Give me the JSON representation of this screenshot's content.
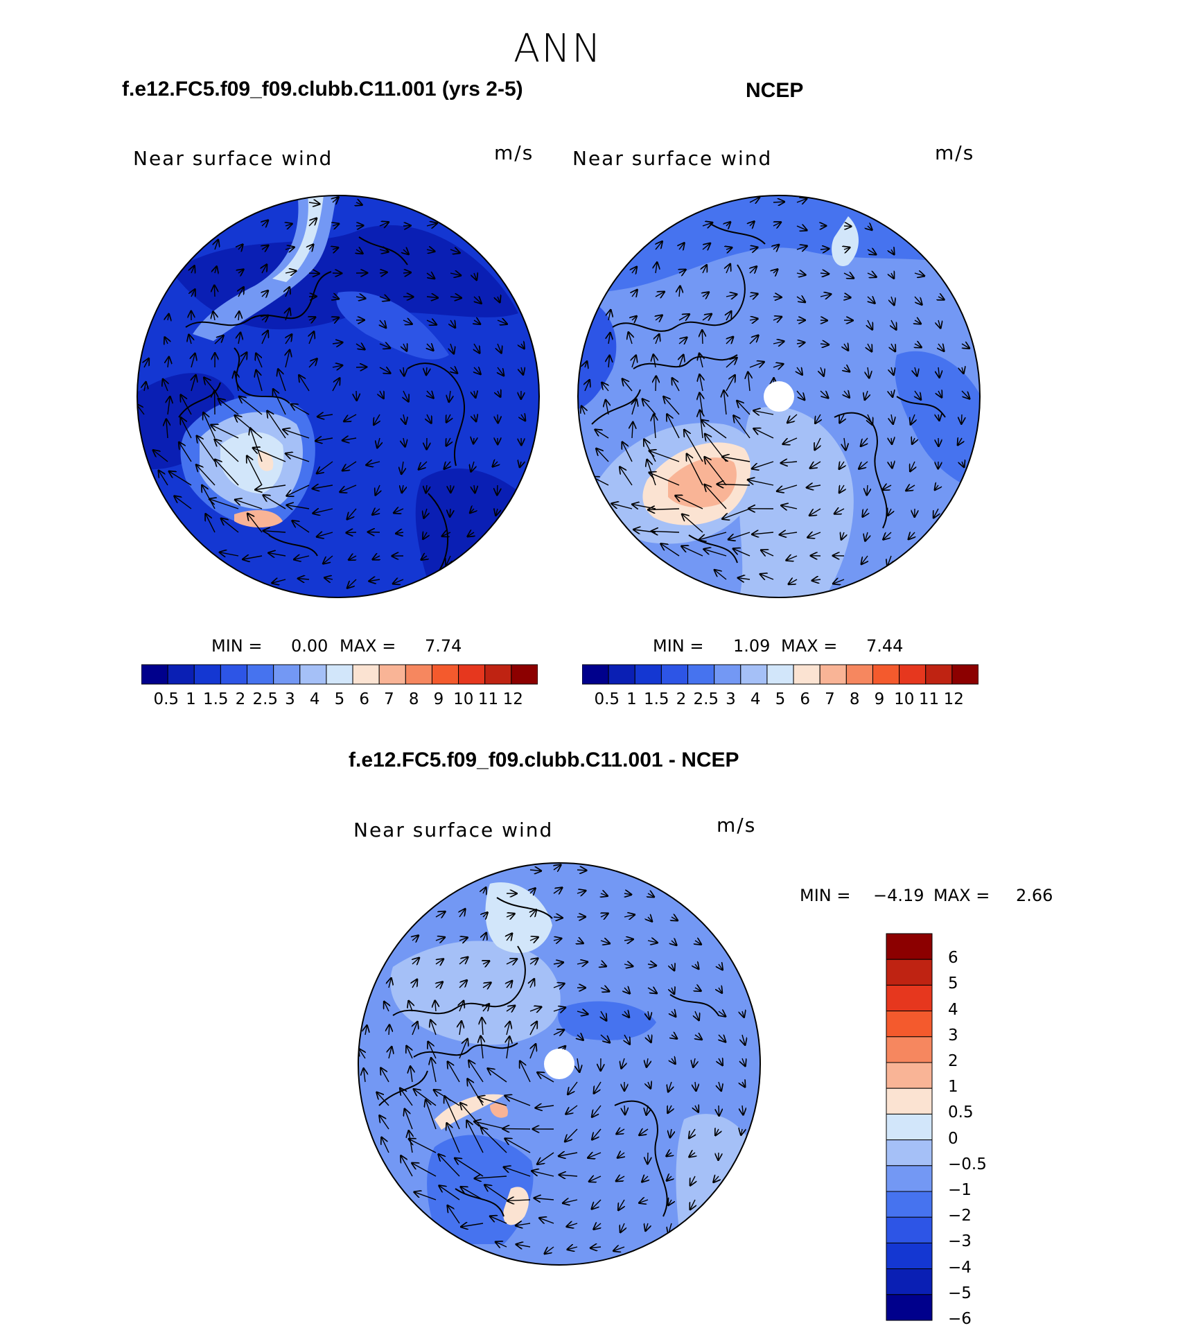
{
  "page": {
    "title": "ANN"
  },
  "panels": {
    "model": {
      "case_title": "f.e12.FC5.f09_f09.clubb.C11.001 (yrs 2-5)",
      "variable": "Near surface wind",
      "units": "m/s",
      "min_label": "MIN =",
      "min_value": "0.00",
      "max_label": "MAX =",
      "max_value": "7.74"
    },
    "obs": {
      "case_title": "NCEP",
      "variable": "Near surface wind",
      "units": "m/s",
      "min_label": "MIN =",
      "min_value": "1.09",
      "max_label": "MAX =",
      "max_value": "7.44"
    },
    "diff": {
      "case_title": "f.e12.FC5.f09_f09.clubb.C11.001 - NCEP",
      "variable": "Near surface wind",
      "units": "m/s",
      "min_label": "MIN =",
      "min_value": "−4.19",
      "max_label": "MAX =",
      "max_value": "2.66"
    }
  },
  "colorbars": {
    "abs_labels": [
      "0.5",
      "1",
      "1.5",
      "2",
      "2.5",
      "3",
      "4",
      "5",
      "6",
      "7",
      "8",
      "9",
      "10",
      "11",
      "12"
    ],
    "abs_colors": [
      "#00008c",
      "#0a1fb4",
      "#1437d2",
      "#2d55e6",
      "#4673ef",
      "#7398f4",
      "#a5c0f7",
      "#d2e6fa",
      "#fbe3d2",
      "#f9b496",
      "#f6875f",
      "#f45a2d",
      "#e6371e",
      "#bf2312",
      "#8c0000"
    ],
    "diff_labels": [
      "6",
      "5",
      "4",
      "3",
      "2",
      "1",
      "0.5",
      "0",
      "−0.5",
      "−1",
      "−2",
      "−3",
      "−4",
      "−5",
      "−6"
    ],
    "diff_colors": [
      "#8c0000",
      "#bf2312",
      "#e6371e",
      "#f45a2d",
      "#f6875f",
      "#f9b496",
      "#fbe3d2",
      "#d2e6fa",
      "#a5c0f7",
      "#7398f4",
      "#4673ef",
      "#2d55e6",
      "#1437d2",
      "#0a1fb4",
      "#00008c"
    ]
  },
  "chart_data": [
    {
      "type": "heatmap",
      "title": "Near surface wind",
      "subtitle": "f.e12.FC5.f09_f09.clubb.C11.001 (yrs 2-5)",
      "units": "m/s",
      "projection": "north polar stereographic",
      "overlay": "wind vectors",
      "min": 0.0,
      "max": 7.74,
      "contour_levels": [
        0.5,
        1,
        1.5,
        2,
        2.5,
        3,
        4,
        5,
        6,
        7,
        8,
        9,
        10,
        11,
        12
      ]
    },
    {
      "type": "heatmap",
      "title": "Near surface wind",
      "subtitle": "NCEP",
      "units": "m/s",
      "projection": "north polar stereographic",
      "overlay": "wind vectors",
      "min": 1.09,
      "max": 7.44,
      "contour_levels": [
        0.5,
        1,
        1.5,
        2,
        2.5,
        3,
        4,
        5,
        6,
        7,
        8,
        9,
        10,
        11,
        12
      ]
    },
    {
      "type": "heatmap",
      "title": "Near surface wind",
      "subtitle": "f.e12.FC5.f09_f09.clubb.C11.001 - NCEP",
      "units": "m/s",
      "projection": "north polar stereographic",
      "overlay": "wind vectors",
      "min": -4.19,
      "max": 2.66,
      "contour_levels": [
        -6,
        -5,
        -4,
        -3,
        -2,
        -1,
        -0.5,
        0,
        0.5,
        1,
        2,
        3,
        4,
        5,
        6
      ]
    }
  ]
}
